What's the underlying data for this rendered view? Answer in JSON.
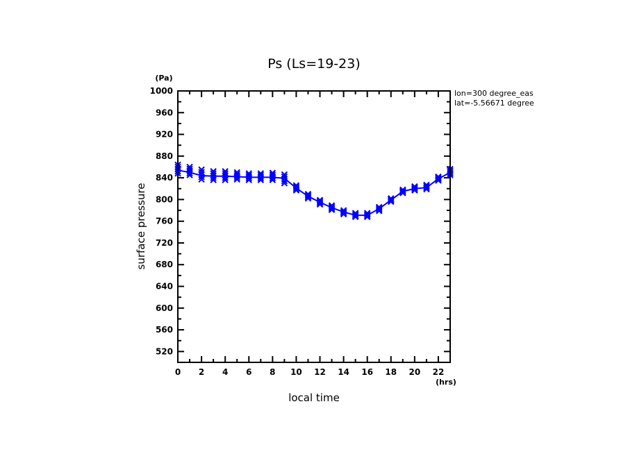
{
  "chart_data": {
    "type": "line",
    "title": "Ps (Ls=19-23)",
    "xlabel": "local time",
    "ylabel": "surface pressure",
    "x_unit": "(hrs)",
    "y_unit": "(Pa)",
    "xlim": [
      0,
      23
    ],
    "ylim": [
      500,
      1000
    ],
    "x_ticks": [
      0,
      2,
      4,
      6,
      8,
      10,
      12,
      14,
      16,
      18,
      20,
      22
    ],
    "x_tick_labels": [
      "0",
      "2",
      "4",
      "6",
      "8",
      "10",
      "12",
      "14",
      "16",
      "18",
      "20",
      "22"
    ],
    "y_ticks": [
      520,
      560,
      600,
      640,
      680,
      720,
      760,
      800,
      840,
      880,
      920,
      960,
      1000
    ],
    "y_tick_labels": [
      "520",
      "560",
      "600",
      "640",
      "680",
      "720",
      "760",
      "800",
      "840",
      "880",
      "920",
      "960",
      "1000"
    ],
    "grid": false,
    "annotations": [
      "lon=300 degree_eas",
      "lat=-5.56671 degree"
    ],
    "series": [
      {
        "name": "Ps",
        "color": "#0000ff",
        "marker": "x",
        "x": [
          0,
          1,
          2,
          3,
          4,
          5,
          6,
          7,
          8,
          9,
          10,
          11,
          12,
          13,
          14,
          15,
          16,
          17,
          18,
          19,
          20,
          21,
          22,
          23
        ],
        "values": [
          854,
          850,
          844,
          843,
          843,
          842,
          841,
          841,
          841,
          839,
          821,
          806,
          795,
          785,
          777,
          771,
          771,
          783,
          799,
          815,
          820,
          822,
          838,
          850
        ],
        "marker_spread_low": [
          848,
          845,
          837,
          836,
          836,
          837,
          836,
          836,
          836,
          830,
          817,
          802,
          791,
          781,
          773,
          768,
          768,
          779,
          796,
          812,
          817,
          819,
          835,
          845
        ],
        "marker_spread_high": [
          864,
          860,
          855,
          852,
          852,
          850,
          848,
          848,
          849,
          846,
          826,
          810,
          799,
          789,
          780,
          775,
          775,
          786,
          802,
          818,
          824,
          827,
          842,
          856
        ]
      }
    ]
  }
}
